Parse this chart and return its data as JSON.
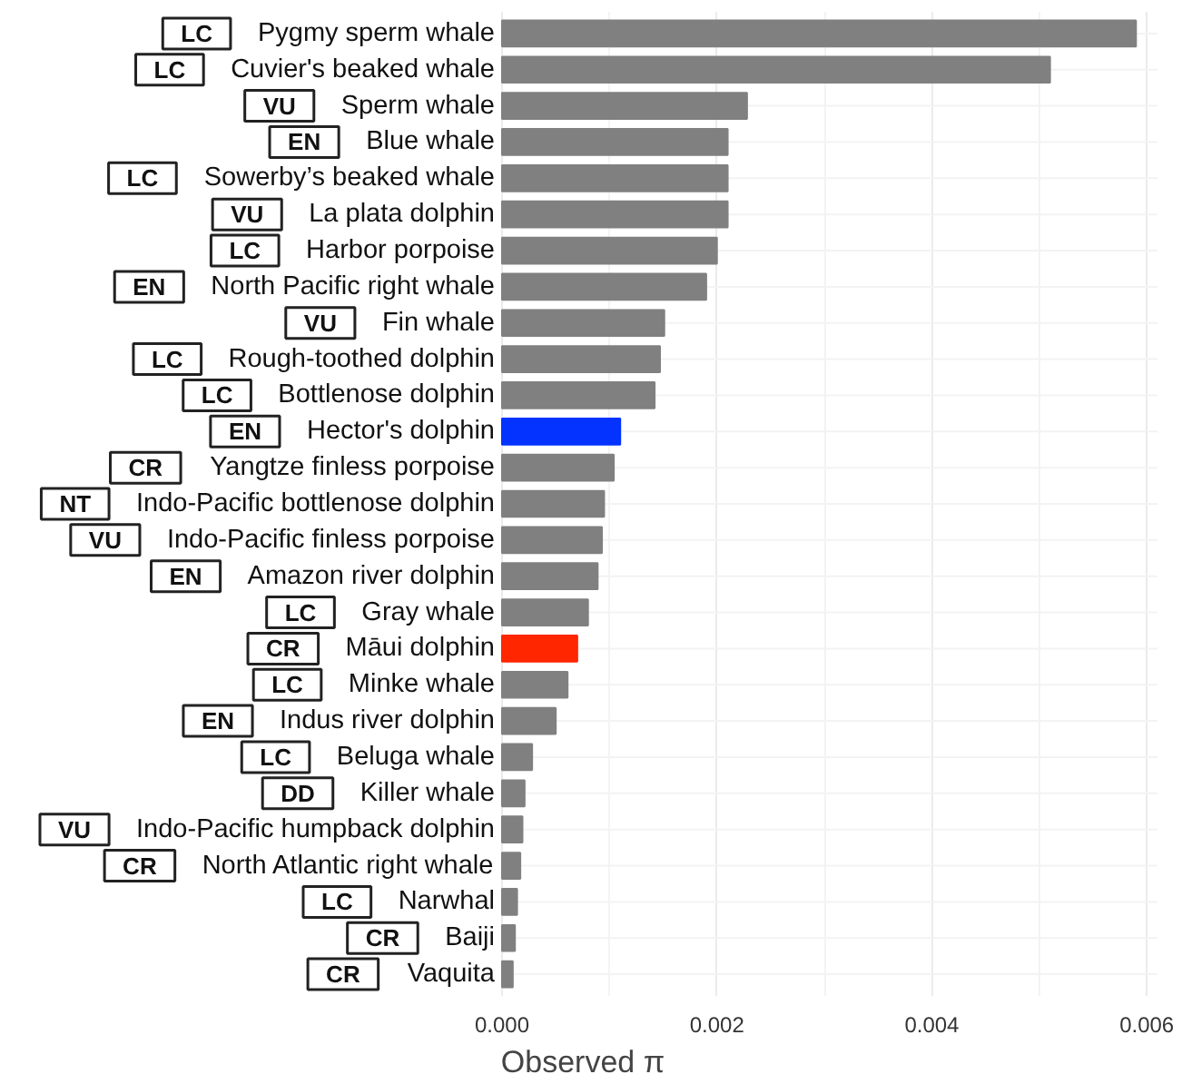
{
  "chart_data": {
    "type": "bar",
    "orientation": "horizontal",
    "xlabel": "Observed π",
    "categories": [
      "Pygmy sperm whale",
      "Cuvier's beaked whale",
      "Sperm whale",
      "Blue whale",
      "Sowerby’s beaked whale",
      "La plata dolphin",
      "Harbor porpoise",
      "North Pacific right whale",
      "Fin whale",
      "Rough-toothed dolphin",
      "Bottlenose dolphin",
      "Hector's dolphin",
      "Yangtze finless porpoise",
      "Indo-Pacific bottlenose dolphin",
      "Indo-Pacific finless porpoise",
      "Amazon river dolphin",
      "Gray whale",
      "Māui dolphin",
      "Minke whale",
      "Indus river dolphin",
      "Beluga whale",
      "Killer whale",
      "Indo-Pacific humpback dolphin",
      "North Atlantic right whale",
      "Narwhal",
      "Baiji",
      "Vaquita"
    ],
    "values": [
      0.0059,
      0.0051,
      0.00228,
      0.0021,
      0.0021,
      0.0021,
      0.002,
      0.0019,
      0.00151,
      0.00147,
      0.00142,
      0.0011,
      0.00104,
      0.00095,
      0.00093,
      0.00089,
      0.0008,
      0.0007,
      0.00061,
      0.0005,
      0.00028,
      0.00021,
      0.00019,
      0.00017,
      0.00014,
      0.00012,
      0.0001
    ],
    "colors": [
      "#808080",
      "#808080",
      "#808080",
      "#808080",
      "#808080",
      "#808080",
      "#808080",
      "#808080",
      "#808080",
      "#808080",
      "#808080",
      "#0433ff",
      "#808080",
      "#808080",
      "#808080",
      "#808080",
      "#808080",
      "#ff2600",
      "#808080",
      "#808080",
      "#808080",
      "#808080",
      "#808080",
      "#808080",
      "#808080",
      "#808080",
      "#808080"
    ],
    "xlim": [
      0,
      0.0061
    ],
    "xticks": [
      {
        "value": 0,
        "label": "0.000"
      },
      {
        "value": 0.002,
        "label": "0.002"
      },
      {
        "value": 0.004,
        "label": "0.004"
      },
      {
        "value": 0.006,
        "label": "0.006"
      }
    ],
    "grid": true,
    "annotations": [
      "LC",
      "LC",
      "VU",
      "EN",
      "LC",
      "VU",
      "LC",
      "EN",
      "VU",
      "LC",
      "LC",
      "EN",
      "CR",
      "NT",
      "VU",
      "EN",
      "LC",
      "CR",
      "LC",
      "EN",
      "LC",
      "DD",
      "VU",
      "CR",
      "LC",
      "CR",
      "CR"
    ]
  }
}
